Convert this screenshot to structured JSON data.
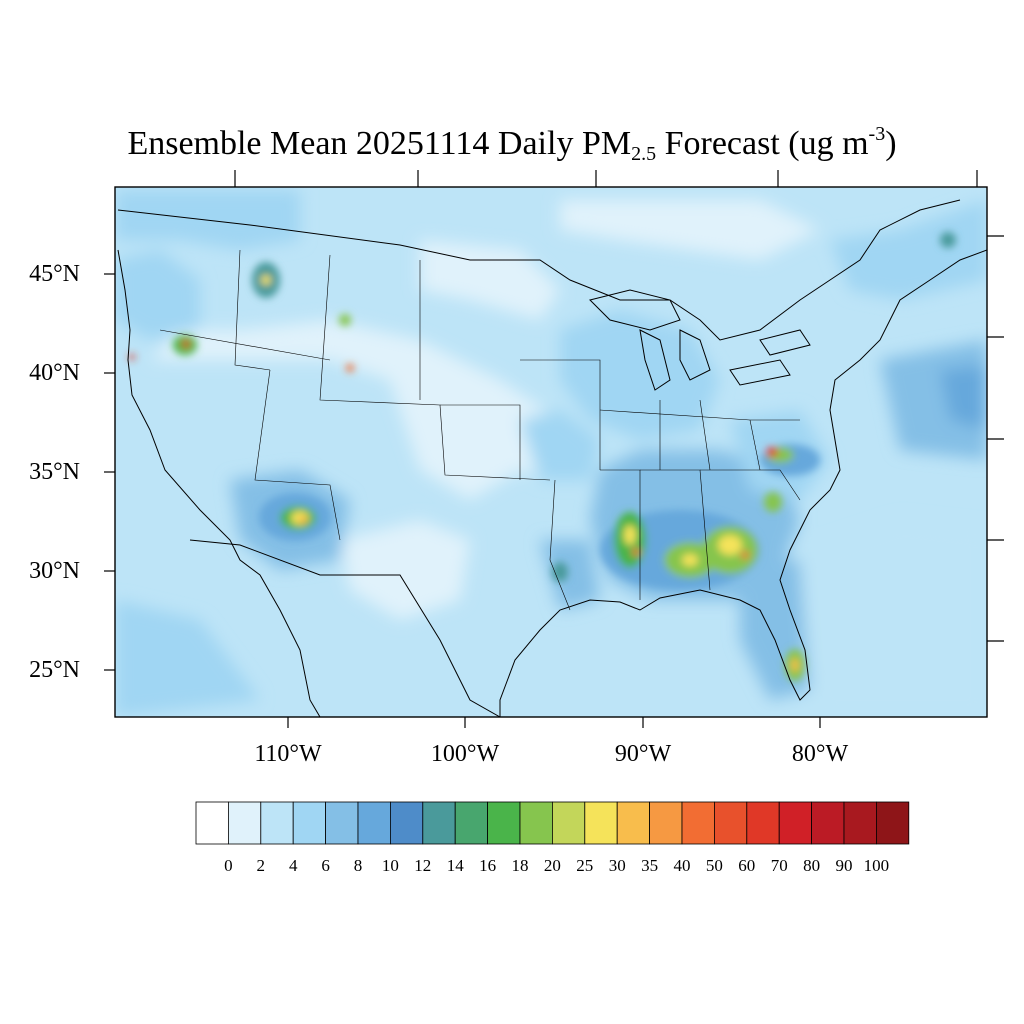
{
  "title": {
    "main": "Ensemble Mean 20251114 Daily PM",
    "subscript": "2.5",
    "suffix": " Forecast (ug m",
    "superscript": "-3",
    "close": ")"
  },
  "map": {
    "lat_labels": [
      "45°N",
      "40°N",
      "35°N",
      "30°N",
      "25°N"
    ],
    "lon_labels": [
      "110°W",
      "100°W",
      "90°W",
      "80°W"
    ]
  },
  "colorbar": {
    "labels": [
      "0",
      "2",
      "4",
      "6",
      "8",
      "10",
      "12",
      "14",
      "16",
      "18",
      "20",
      "25",
      "30",
      "35",
      "40",
      "50",
      "60",
      "70",
      "80",
      "90",
      "100"
    ],
    "colors": [
      "#ffffff",
      "#e0f2fb",
      "#bde4f7",
      "#a0d6f3",
      "#84bfe6",
      "#66a8dc",
      "#4e8cc9",
      "#4a9a9b",
      "#48a66e",
      "#4ab44a",
      "#86c54e",
      "#c3d65a",
      "#f5e35a",
      "#f8bd4c",
      "#f69942",
      "#f26d33",
      "#e8512c",
      "#e03827",
      "#d02027",
      "#bb1b25",
      "#a8191f",
      "#8e1518"
    ]
  }
}
